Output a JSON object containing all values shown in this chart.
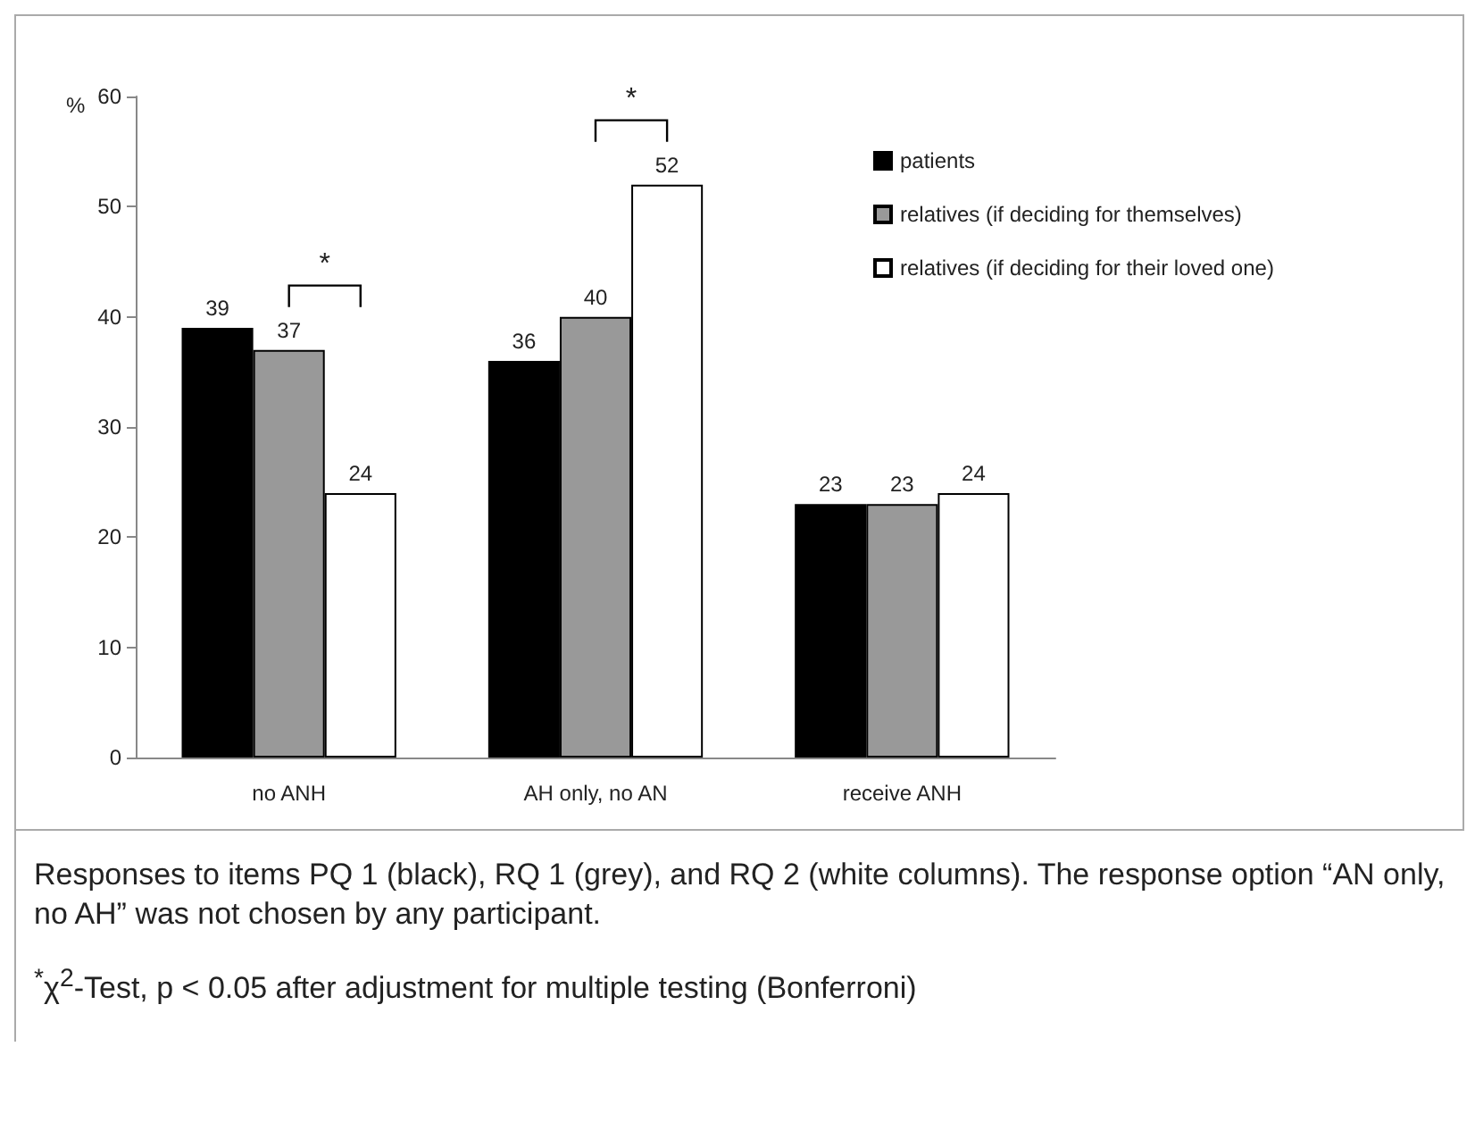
{
  "chart_data": {
    "type": "bar",
    "ylabel": "%",
    "categories": [
      "no ANH",
      "AH only, no AN",
      "receive ANH"
    ],
    "series": [
      {
        "name": "patients",
        "color": "#000000",
        "values": [
          39,
          36,
          23
        ]
      },
      {
        "name": "relatives (if deciding for themselves)",
        "color": "#999999",
        "values": [
          37,
          40,
          23
        ]
      },
      {
        "name": "relatives (if deciding for their loved one)",
        "color": "#ffffff",
        "values": [
          24,
          52,
          24
        ]
      }
    ],
    "ylim": [
      0,
      60
    ],
    "yticks": [
      0,
      10,
      20,
      30,
      40,
      50,
      60
    ],
    "grid": false,
    "legend": "top right",
    "data_labels": true,
    "annotations": [
      "*",
      "*",
      "Responses to items PQ 1 (black), RQ 1 (grey), and RQ 2 (white columns). The response option “AN only, no AH” was not chosen by any participant.",
      "$^{*}$χ$^{2}$-Test, p < 0.05 after adjustment for multiple testing (Bonferroni)"
    ]
  }
}
